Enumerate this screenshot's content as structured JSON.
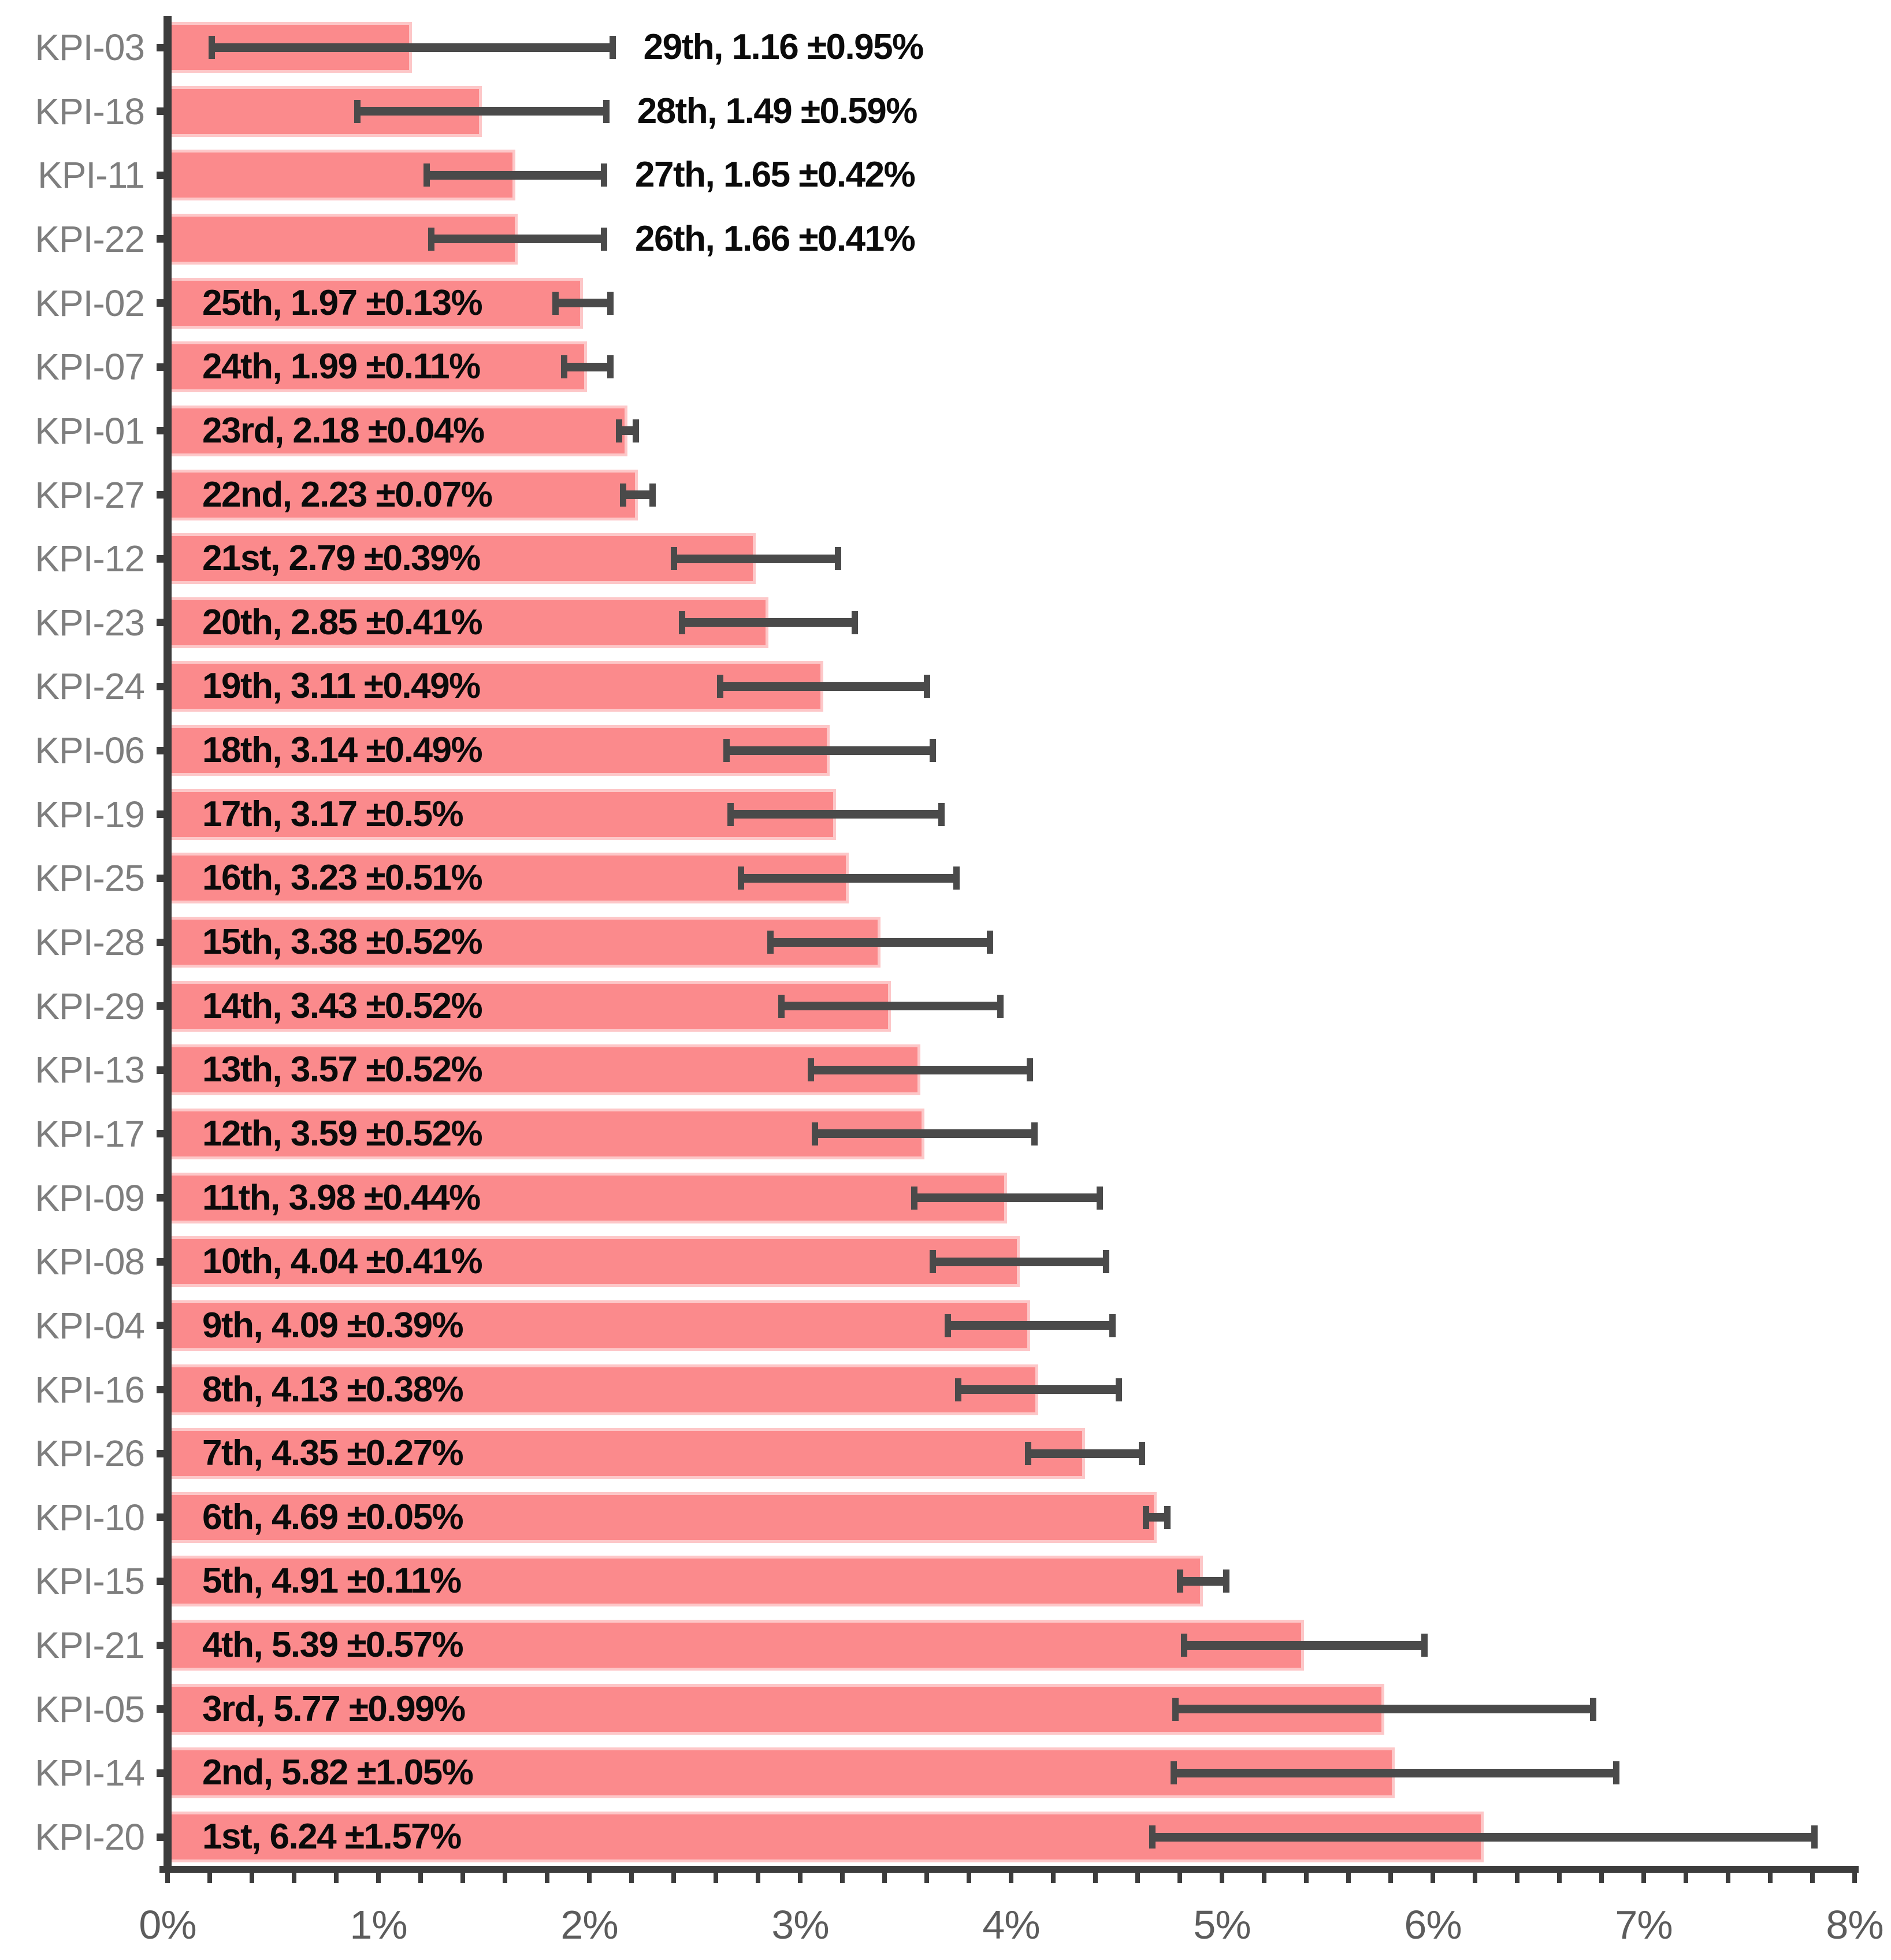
{
  "chart_data": {
    "type": "bar",
    "orientation": "horizontal",
    "title": "",
    "xlabel": "",
    "ylabel": "",
    "xlim": [
      0,
      8
    ],
    "x_tick_labels": [
      "0%",
      "1%",
      "2%",
      "3%",
      "4%",
      "5%",
      "6%",
      "7%",
      "8%"
    ],
    "x_major_step_pct": 1.0,
    "x_minor_step_pct": 0.2,
    "grid": false,
    "legend": false,
    "value_unit": "%",
    "colors": {
      "bar_fill": "#FB8A8C",
      "bar_soft_edge": "#FDC7C8",
      "error_bar": "#4A4A4A",
      "axis": "#3C3C3C",
      "category_label": "#7E7E7E",
      "x_tick_label": "#5C5C5C",
      "data_label": "#0B0B0B"
    },
    "series": [
      {
        "category": "KPI-03",
        "rank": "29th",
        "value": 1.16,
        "error": 0.95,
        "label": "29th, 1.16 ±0.95%",
        "label_position": "outside"
      },
      {
        "category": "KPI-18",
        "rank": "28th",
        "value": 1.49,
        "error": 0.59,
        "label": "28th, 1.49 ±0.59%",
        "label_position": "outside"
      },
      {
        "category": "KPI-11",
        "rank": "27th",
        "value": 1.65,
        "error": 0.42,
        "label": "27th, 1.65 ±0.42%",
        "label_position": "outside"
      },
      {
        "category": "KPI-22",
        "rank": "26th",
        "value": 1.66,
        "error": 0.41,
        "label": "26th, 1.66 ±0.41%",
        "label_position": "outside"
      },
      {
        "category": "KPI-02",
        "rank": "25th",
        "value": 1.97,
        "error": 0.13,
        "label": "25th, 1.97 ±0.13%",
        "label_position": "inside"
      },
      {
        "category": "KPI-07",
        "rank": "24th",
        "value": 1.99,
        "error": 0.11,
        "label": "24th, 1.99 ±0.11%",
        "label_position": "inside"
      },
      {
        "category": "KPI-01",
        "rank": "23rd",
        "value": 2.18,
        "error": 0.04,
        "label": "23rd, 2.18 ±0.04%",
        "label_position": "inside"
      },
      {
        "category": "KPI-27",
        "rank": "22nd",
        "value": 2.23,
        "error": 0.07,
        "label": "22nd, 2.23 ±0.07%",
        "label_position": "inside"
      },
      {
        "category": "KPI-12",
        "rank": "21st",
        "value": 2.79,
        "error": 0.39,
        "label": "21st, 2.79 ±0.39%",
        "label_position": "inside"
      },
      {
        "category": "KPI-23",
        "rank": "20th",
        "value": 2.85,
        "error": 0.41,
        "label": "20th, 2.85 ±0.41%",
        "label_position": "inside"
      },
      {
        "category": "KPI-24",
        "rank": "19th",
        "value": 3.11,
        "error": 0.49,
        "label": "19th, 3.11 ±0.49%",
        "label_position": "inside"
      },
      {
        "category": "KPI-06",
        "rank": "18th",
        "value": 3.14,
        "error": 0.49,
        "label": "18th, 3.14 ±0.49%",
        "label_position": "inside"
      },
      {
        "category": "KPI-19",
        "rank": "17th",
        "value": 3.17,
        "error": 0.5,
        "label": "17th, 3.17 ±0.5%",
        "label_position": "inside"
      },
      {
        "category": "KPI-25",
        "rank": "16th",
        "value": 3.23,
        "error": 0.51,
        "label": "16th, 3.23 ±0.51%",
        "label_position": "inside"
      },
      {
        "category": "KPI-28",
        "rank": "15th",
        "value": 3.38,
        "error": 0.52,
        "label": "15th, 3.38 ±0.52%",
        "label_position": "inside"
      },
      {
        "category": "KPI-29",
        "rank": "14th",
        "value": 3.43,
        "error": 0.52,
        "label": "14th, 3.43 ±0.52%",
        "label_position": "inside"
      },
      {
        "category": "KPI-13",
        "rank": "13th",
        "value": 3.57,
        "error": 0.52,
        "label": "13th, 3.57 ±0.52%",
        "label_position": "inside"
      },
      {
        "category": "KPI-17",
        "rank": "12th",
        "value": 3.59,
        "error": 0.52,
        "label": "12th, 3.59 ±0.52%",
        "label_position": "inside"
      },
      {
        "category": "KPI-09",
        "rank": "11th",
        "value": 3.98,
        "error": 0.44,
        "label": "11th, 3.98 ±0.44%",
        "label_position": "inside"
      },
      {
        "category": "KPI-08",
        "rank": "10th",
        "value": 4.04,
        "error": 0.41,
        "label": "10th, 4.04 ±0.41%",
        "label_position": "inside"
      },
      {
        "category": "KPI-04",
        "rank": "9th",
        "value": 4.09,
        "error": 0.39,
        "label": "9th, 4.09 ±0.39%",
        "label_position": "inside"
      },
      {
        "category": "KPI-16",
        "rank": "8th",
        "value": 4.13,
        "error": 0.38,
        "label": "8th, 4.13 ±0.38%",
        "label_position": "inside"
      },
      {
        "category": "KPI-26",
        "rank": "7th",
        "value": 4.35,
        "error": 0.27,
        "label": "7th, 4.35 ±0.27%",
        "label_position": "inside"
      },
      {
        "category": "KPI-10",
        "rank": "6th",
        "value": 4.69,
        "error": 0.05,
        "label": "6th, 4.69 ±0.05%",
        "label_position": "inside"
      },
      {
        "category": "KPI-15",
        "rank": "5th",
        "value": 4.91,
        "error": 0.11,
        "label": "5th, 4.91 ±0.11%",
        "label_position": "inside"
      },
      {
        "category": "KPI-21",
        "rank": "4th",
        "value": 5.39,
        "error": 0.57,
        "label": "4th, 5.39 ±0.57%",
        "label_position": "inside"
      },
      {
        "category": "KPI-05",
        "rank": "3rd",
        "value": 5.77,
        "error": 0.99,
        "label": "3rd, 5.77 ±0.99%",
        "label_position": "inside"
      },
      {
        "category": "KPI-14",
        "rank": "2nd",
        "value": 5.82,
        "error": 1.05,
        "label": "2nd, 5.82 ±1.05%",
        "label_position": "inside"
      },
      {
        "category": "KPI-20",
        "rank": "1st",
        "value": 6.24,
        "error": 1.57,
        "label": "1st, 6.24 ±1.57%",
        "label_position": "inside"
      }
    ]
  }
}
